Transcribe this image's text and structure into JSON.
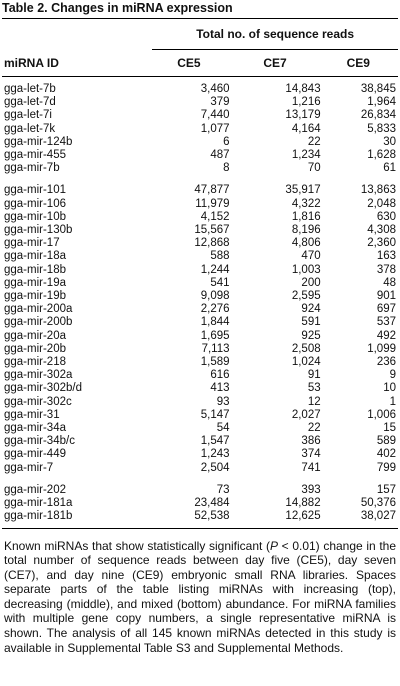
{
  "caption": {
    "table_number": "Table 2.",
    "title": "Changes in miRNA expression"
  },
  "header": {
    "group_label": "Total no. of sequence reads",
    "id_label": "miRNA ID",
    "cols": [
      "CE5",
      "CE7",
      "CE9"
    ]
  },
  "groups": [
    {
      "rows": [
        {
          "id": "gga-let-7b",
          "ce5": "3,460",
          "ce7": "14,843",
          "ce9": "38,845"
        },
        {
          "id": "gga-let-7d",
          "ce5": "379",
          "ce7": "1,216",
          "ce9": "1,964"
        },
        {
          "id": "gga-let-7i",
          "ce5": "7,440",
          "ce7": "13,179",
          "ce9": "26,834"
        },
        {
          "id": "gga-let-7k",
          "ce5": "1,077",
          "ce7": "4,164",
          "ce9": "5,833"
        },
        {
          "id": "gga-mir-124b",
          "ce5": "6",
          "ce7": "22",
          "ce9": "30"
        },
        {
          "id": "gga-mir-455",
          "ce5": "487",
          "ce7": "1,234",
          "ce9": "1,628"
        },
        {
          "id": "gga-mir-7b",
          "ce5": "8",
          "ce7": "70",
          "ce9": "61"
        }
      ]
    },
    {
      "rows": [
        {
          "id": "gga-mir-101",
          "ce5": "47,877",
          "ce7": "35,917",
          "ce9": "13,863"
        },
        {
          "id": "gga-mir-106",
          "ce5": "11,979",
          "ce7": "4,322",
          "ce9": "2,048"
        },
        {
          "id": "gga-mir-10b",
          "ce5": "4,152",
          "ce7": "1,816",
          "ce9": "630"
        },
        {
          "id": "gga-mir-130b",
          "ce5": "15,567",
          "ce7": "8,196",
          "ce9": "4,308"
        },
        {
          "id": "gga-mir-17",
          "ce5": "12,868",
          "ce7": "4,806",
          "ce9": "2,360"
        },
        {
          "id": "gga-mir-18a",
          "ce5": "588",
          "ce7": "470",
          "ce9": "163"
        },
        {
          "id": "gga-mir-18b",
          "ce5": "1,244",
          "ce7": "1,003",
          "ce9": "378"
        },
        {
          "id": "gga-mir-19a",
          "ce5": "541",
          "ce7": "200",
          "ce9": "48"
        },
        {
          "id": "gga-mir-19b",
          "ce5": "9,098",
          "ce7": "2,595",
          "ce9": "901"
        },
        {
          "id": "gga-mir-200a",
          "ce5": "2,276",
          "ce7": "924",
          "ce9": "697"
        },
        {
          "id": "gga-mir-200b",
          "ce5": "1,844",
          "ce7": "591",
          "ce9": "537"
        },
        {
          "id": "gga-mir-20a",
          "ce5": "1,695",
          "ce7": "925",
          "ce9": "492"
        },
        {
          "id": "gga-mir-20b",
          "ce5": "7,113",
          "ce7": "2,508",
          "ce9": "1,099"
        },
        {
          "id": "gga-mir-218",
          "ce5": "1,589",
          "ce7": "1,024",
          "ce9": "236"
        },
        {
          "id": "gga-mir-302a",
          "ce5": "616",
          "ce7": "91",
          "ce9": "9"
        },
        {
          "id": "gga-mir-302b/d",
          "ce5": "413",
          "ce7": "53",
          "ce9": "10"
        },
        {
          "id": "gga-mir-302c",
          "ce5": "93",
          "ce7": "12",
          "ce9": "1"
        },
        {
          "id": "gga-mir-31",
          "ce5": "5,147",
          "ce7": "2,027",
          "ce9": "1,006"
        },
        {
          "id": "gga-mir-34a",
          "ce5": "54",
          "ce7": "22",
          "ce9": "15"
        },
        {
          "id": "gga-mir-34b/c",
          "ce5": "1,547",
          "ce7": "386",
          "ce9": "589"
        },
        {
          "id": "gga-mir-449",
          "ce5": "1,243",
          "ce7": "374",
          "ce9": "402"
        },
        {
          "id": "gga-mir-7",
          "ce5": "2,504",
          "ce7": "741",
          "ce9": "799"
        }
      ]
    },
    {
      "rows": [
        {
          "id": "gga-mir-202",
          "ce5": "73",
          "ce7": "393",
          "ce9": "157"
        },
        {
          "id": "gga-mir-181a",
          "ce5": "23,484",
          "ce7": "14,882",
          "ce9": "50,376"
        },
        {
          "id": "gga-mir-181b",
          "ce5": "52,538",
          "ce7": "12,625",
          "ce9": "38,027"
        }
      ]
    }
  ],
  "footnote": {
    "before_p": "Known miRNAs that show statistically significant (",
    "p": "P",
    "after_p": " < 0.01) change in the total number of sequence reads between day five (CE5), day seven (CE7), and day nine (CE9) embryonic small RNA libraries. Spaces separate parts of the table listing miRNAs with increasing (top), decreasing (middle), and mixed (bottom) abundance. For miRNA families with multiple gene copy numbers, a single representative miRNA is shown. The analysis of all 145 known miRNAs detected in this study is available in Supplemental Table S3 and Supplemental Methods."
  }
}
